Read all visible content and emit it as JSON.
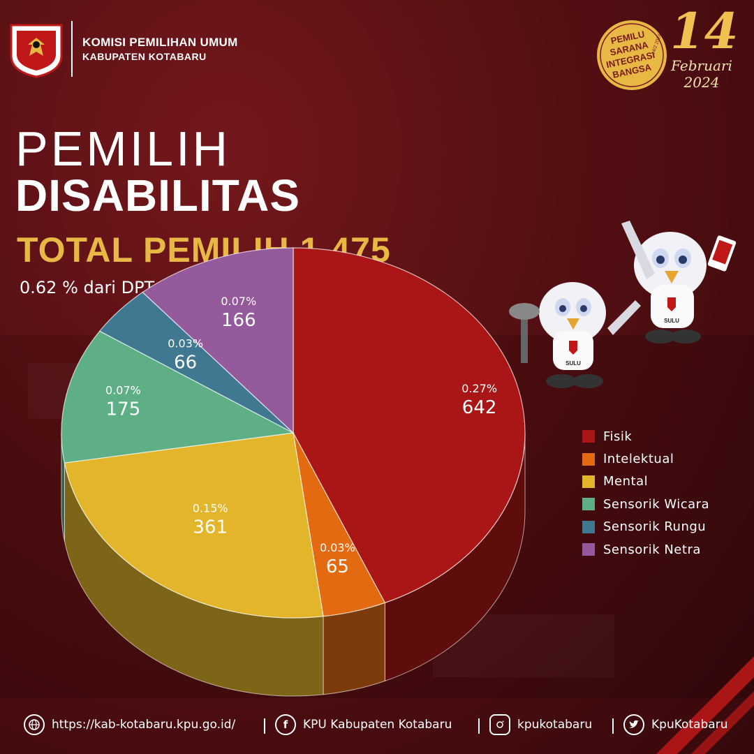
{
  "header": {
    "org_line1": "KOMISI PEMILIHAN UMUM",
    "org_line2": "KABUPATEN KOTABARU",
    "logo_text_top": "KOMISI",
    "logo_text_bottom": "PEMILIHAN UMUM",
    "badge_lines": [
      "PEMILU",
      "SARANA",
      "INTEGRASI",
      "BANGSA"
    ],
    "badge_date": "14/2 2024",
    "date_number": "14",
    "date_month": "Februari",
    "date_year": "2024"
  },
  "title": {
    "line1": "PEMILIH",
    "line2": "DISABILITAS",
    "total": "TOTAL PEMILIH 1.475",
    "subtitle": "0.62 % dari DPT"
  },
  "mascot_shirt_text": "SULU",
  "chart_data": {
    "type": "pie",
    "title": "PEMILIH DISABILITAS",
    "categories": [
      "Fisik",
      "Intelektual",
      "Mental",
      "Sensorik Wicara",
      "Sensorik Rungu",
      "Sensorik Netra"
    ],
    "values": [
      642,
      65,
      361,
      175,
      66,
      166
    ],
    "value_labels": [
      "642",
      "65",
      "361",
      "175",
      "66",
      "166"
    ],
    "percent_labels": [
      "0.27%",
      "0.03%",
      "0.15%",
      "0.07%",
      "0.03%",
      "0.07%"
    ],
    "colors": [
      "#aa1616",
      "#e46a12",
      "#e3b52a",
      "#5faf86",
      "#3f7890",
      "#945a9c"
    ],
    "legend_position": "right"
  },
  "footer": {
    "website": "https://kab-kotabaru.kpu.go.id/",
    "facebook": "KPU Kabupaten Kotabaru",
    "instagram": "kpukotabaru",
    "twitter": "KpuKotabaru"
  }
}
